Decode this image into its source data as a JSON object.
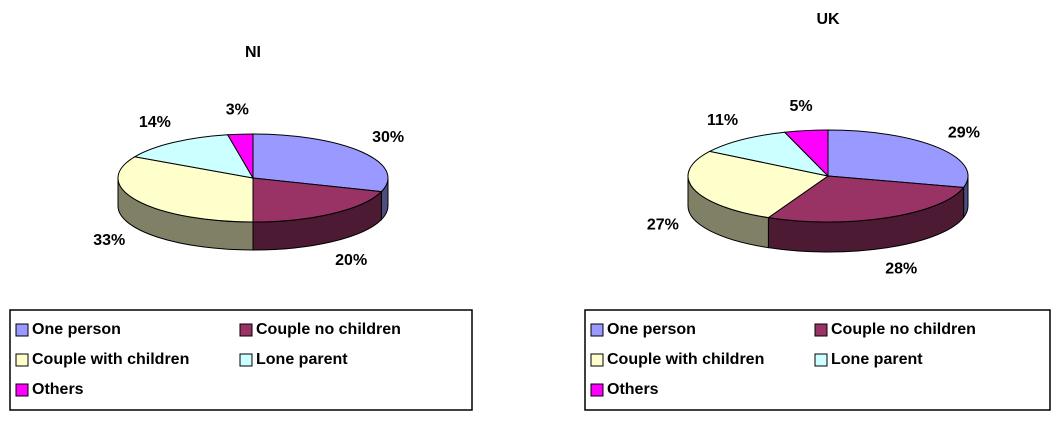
{
  "chart_data": [
    {
      "type": "pie",
      "title": "NI",
      "categories": [
        "One person",
        "Couple no children",
        "Couple with children",
        "Lone parent",
        "Others"
      ],
      "values": [
        30,
        20,
        33,
        14,
        3
      ],
      "value_labels": [
        "30%",
        "20%",
        "33%",
        "14%",
        "3%"
      ],
      "colors": [
        "#9999ff",
        "#993366",
        "#ffffcc",
        "#ccffff",
        "#ff00ff"
      ]
    },
    {
      "type": "pie",
      "title": "UK",
      "categories": [
        "One person",
        "Couple no children",
        "Couple with children",
        "Lone parent",
        "Others"
      ],
      "values": [
        29,
        28,
        27,
        11,
        5
      ],
      "value_labels": [
        "29%",
        "28%",
        "27%",
        "11%",
        "5%"
      ],
      "colors": [
        "#9999ff",
        "#993366",
        "#ffffcc",
        "#ccffff",
        "#ff00ff"
      ]
    }
  ]
}
